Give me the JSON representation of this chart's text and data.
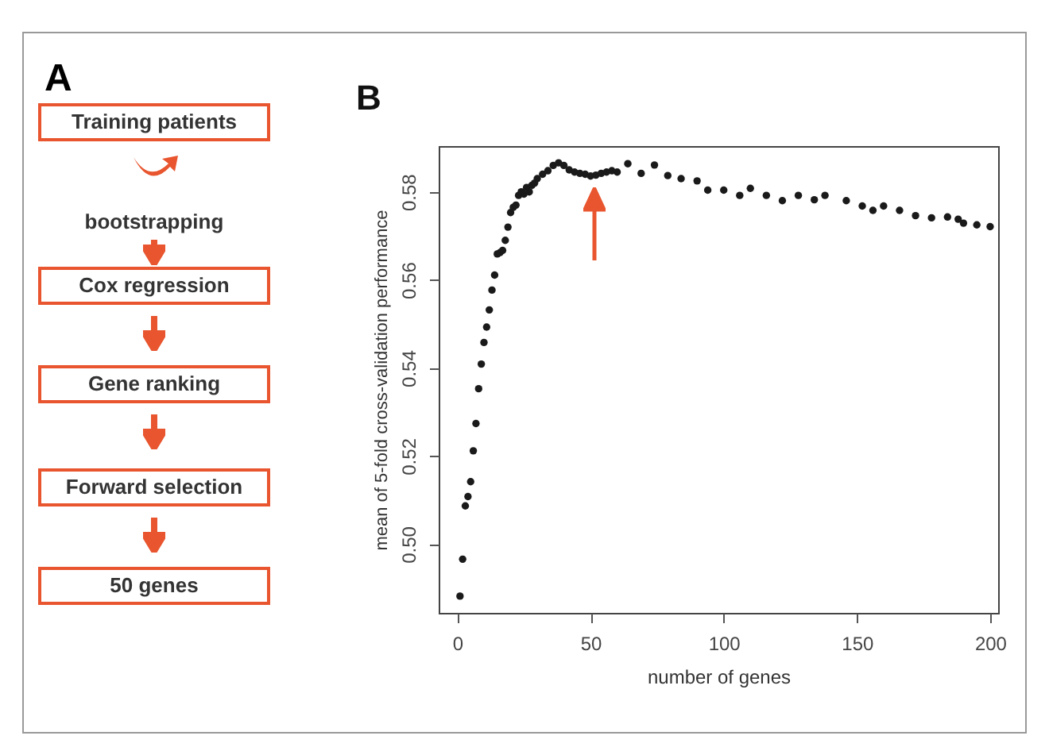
{
  "chart_data": [
    {
      "type": "other",
      "title": "A",
      "annotations": [
        "Training patients",
        "bootstrapping",
        "Cox regression",
        "Gene ranking",
        "Forward selection",
        "50 genes"
      ]
    },
    {
      "type": "scatter",
      "title": "B",
      "xlabel": "number of genes",
      "ylabel": "mean of 5-fold cross-validation performance",
      "xlim": [
        -7,
        203
      ],
      "ylim": [
        0.4844,
        0.5904
      ],
      "xticks": [
        0,
        50,
        100,
        150,
        200
      ],
      "yticks": [
        {
          "value": 0.5,
          "label": "0.50"
        },
        {
          "value": 0.52,
          "label": "0.52"
        },
        {
          "value": 0.54,
          "label": "0.54"
        },
        {
          "value": 0.56,
          "label": "0.56"
        },
        {
          "value": 0.58,
          "label": "0.58"
        }
      ],
      "grid": false,
      "marker": "circle",
      "series": [
        {
          "color": "#1a1a1a",
          "x": [
            1,
            2,
            3,
            4,
            5,
            6,
            7,
            8,
            9,
            10,
            11,
            12,
            13,
            14,
            15,
            16,
            17,
            18,
            19,
            20,
            21,
            22,
            23,
            24,
            25,
            26,
            27,
            28,
            29,
            30,
            32,
            34,
            36,
            38,
            40,
            42,
            44,
            46,
            48,
            50,
            52,
            54,
            56,
            58,
            60,
            64,
            69,
            74,
            79,
            84,
            90,
            94,
            100,
            106,
            110,
            116,
            122,
            128,
            134,
            138,
            146,
            152,
            156,
            160,
            166,
            172,
            178,
            184,
            188,
            190,
            195,
            200
          ],
          "values": [
            0.4882,
            0.4966,
            0.5087,
            0.5108,
            0.5142,
            0.5212,
            0.5274,
            0.5353,
            0.5409,
            0.5458,
            0.5493,
            0.5532,
            0.5577,
            0.5611,
            0.5659,
            0.5662,
            0.5667,
            0.569,
            0.572,
            0.5753,
            0.5765,
            0.577,
            0.5792,
            0.58,
            0.5795,
            0.581,
            0.58,
            0.5815,
            0.582,
            0.583,
            0.584,
            0.5848,
            0.586,
            0.5866,
            0.586,
            0.585,
            0.5845,
            0.5842,
            0.584,
            0.5836,
            0.5838,
            0.5842,
            0.5845,
            0.5848,
            0.5845,
            0.5864,
            0.5842,
            0.5861,
            0.5837,
            0.583,
            0.5825,
            0.5804,
            0.5804,
            0.5792,
            0.5808,
            0.5792,
            0.578,
            0.5792,
            0.5782,
            0.5792,
            0.578,
            0.5768,
            0.5758,
            0.5768,
            0.5758,
            0.5746,
            0.5741,
            0.5743,
            0.5738,
            0.5729,
            0.5725,
            0.5721
          ]
        }
      ]
    }
  ]
}
